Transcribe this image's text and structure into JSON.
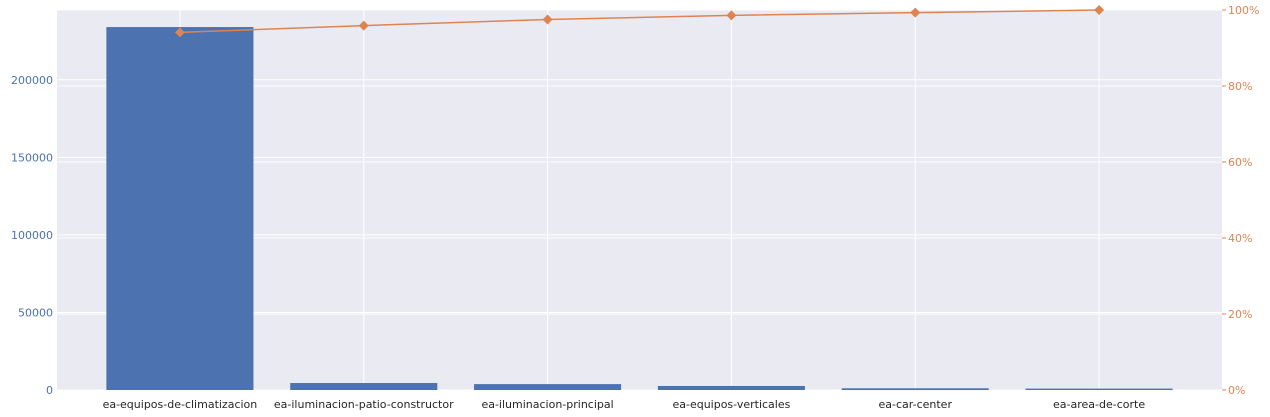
{
  "chart_data": {
    "type": "bar",
    "categories": [
      "ea-equipos-de-climatizacion",
      "ea-iluminacion-patio-constructor",
      "ea-iluminacion-principal",
      "ea-equipos-verticales",
      "ea-car-center",
      "ea-area-de-corte"
    ],
    "series": [
      {
        "type": "bar",
        "axis": "left",
        "color": "#4c72b0",
        "values": [
          234000,
          4500,
          3800,
          2600,
          1100,
          900
        ]
      },
      {
        "type": "line",
        "axis": "right",
        "color": "#dd8452",
        "marker": "diamond",
        "values": [
          94.1,
          95.9,
          97.5,
          98.6,
          99.3,
          100.0
        ]
      }
    ],
    "left_axis": {
      "ylim": [
        0,
        245000
      ],
      "ticks": [
        0,
        50000,
        100000,
        150000,
        200000
      ],
      "tick_labels": [
        "0",
        "50000",
        "100000",
        "150000",
        "200000"
      ],
      "color": "#4c72b0"
    },
    "right_axis": {
      "ylim": [
        0,
        100
      ],
      "ticks": [
        0,
        20,
        40,
        60,
        80,
        100
      ],
      "tick_labels": [
        "0%",
        "20%",
        "40%",
        "60%",
        "80%",
        "100%"
      ],
      "color": "#dd8452"
    },
    "grid": true,
    "background": "#eaeaf2",
    "title": "",
    "xlabel": "",
    "ylabel": ""
  }
}
